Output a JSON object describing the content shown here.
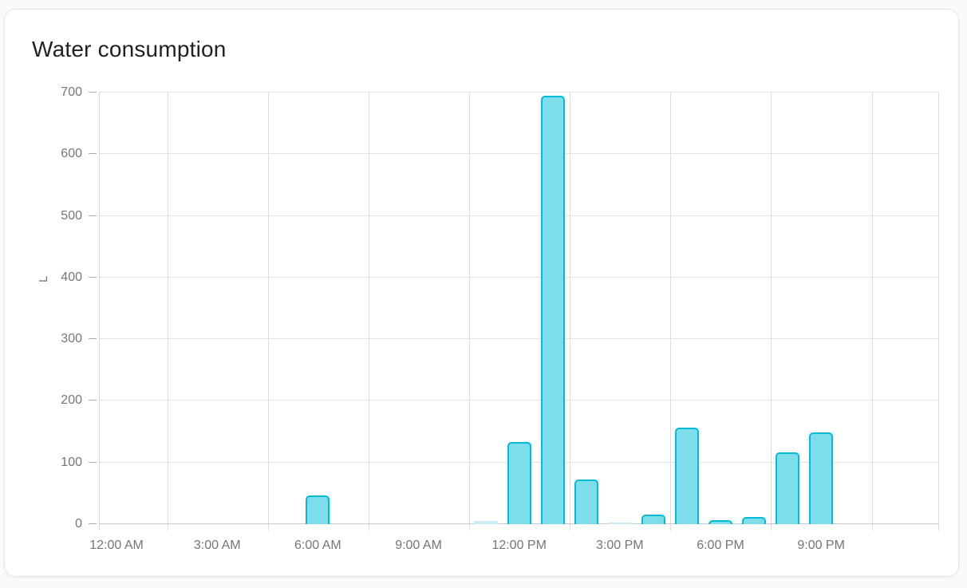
{
  "chart_data": {
    "type": "bar",
    "title": "Water consumption",
    "ylabel": "L",
    "ylim": [
      0,
      700
    ],
    "y_ticks": [
      0,
      100,
      200,
      300,
      400,
      500,
      600,
      700
    ],
    "x_tick_labels": [
      "12:00 AM",
      "3:00 AM",
      "6:00 AM",
      "9:00 AM",
      "12:00 PM",
      "3:00 PM",
      "6:00 PM",
      "9:00 PM"
    ],
    "categories": [
      "12:00 AM",
      "1:00 AM",
      "2:00 AM",
      "3:00 AM",
      "4:00 AM",
      "5:00 AM",
      "6:00 AM",
      "7:00 AM",
      "8:00 AM",
      "9:00 AM",
      "10:00 AM",
      "11:00 AM",
      "12:00 PM",
      "1:00 PM",
      "2:00 PM",
      "3:00 PM",
      "4:00 PM",
      "5:00 PM",
      "6:00 PM",
      "7:00 PM",
      "8:00 PM",
      "9:00 PM",
      "10:00 PM",
      "11:00 PM"
    ],
    "values": [
      0,
      0,
      0,
      0,
      0,
      0,
      46,
      0,
      0,
      0,
      0,
      5,
      133,
      695,
      73,
      2,
      16,
      157,
      6,
      11,
      117,
      149,
      0,
      0
    ],
    "unit": "L",
    "grid": true,
    "legend": false,
    "colors": {
      "bar_fill": "#7eddea",
      "bar_border": "#00bcd4",
      "bar_fill_tiny": "#c9edf5",
      "axis_text": "#757575",
      "title_text": "#212121"
    }
  }
}
